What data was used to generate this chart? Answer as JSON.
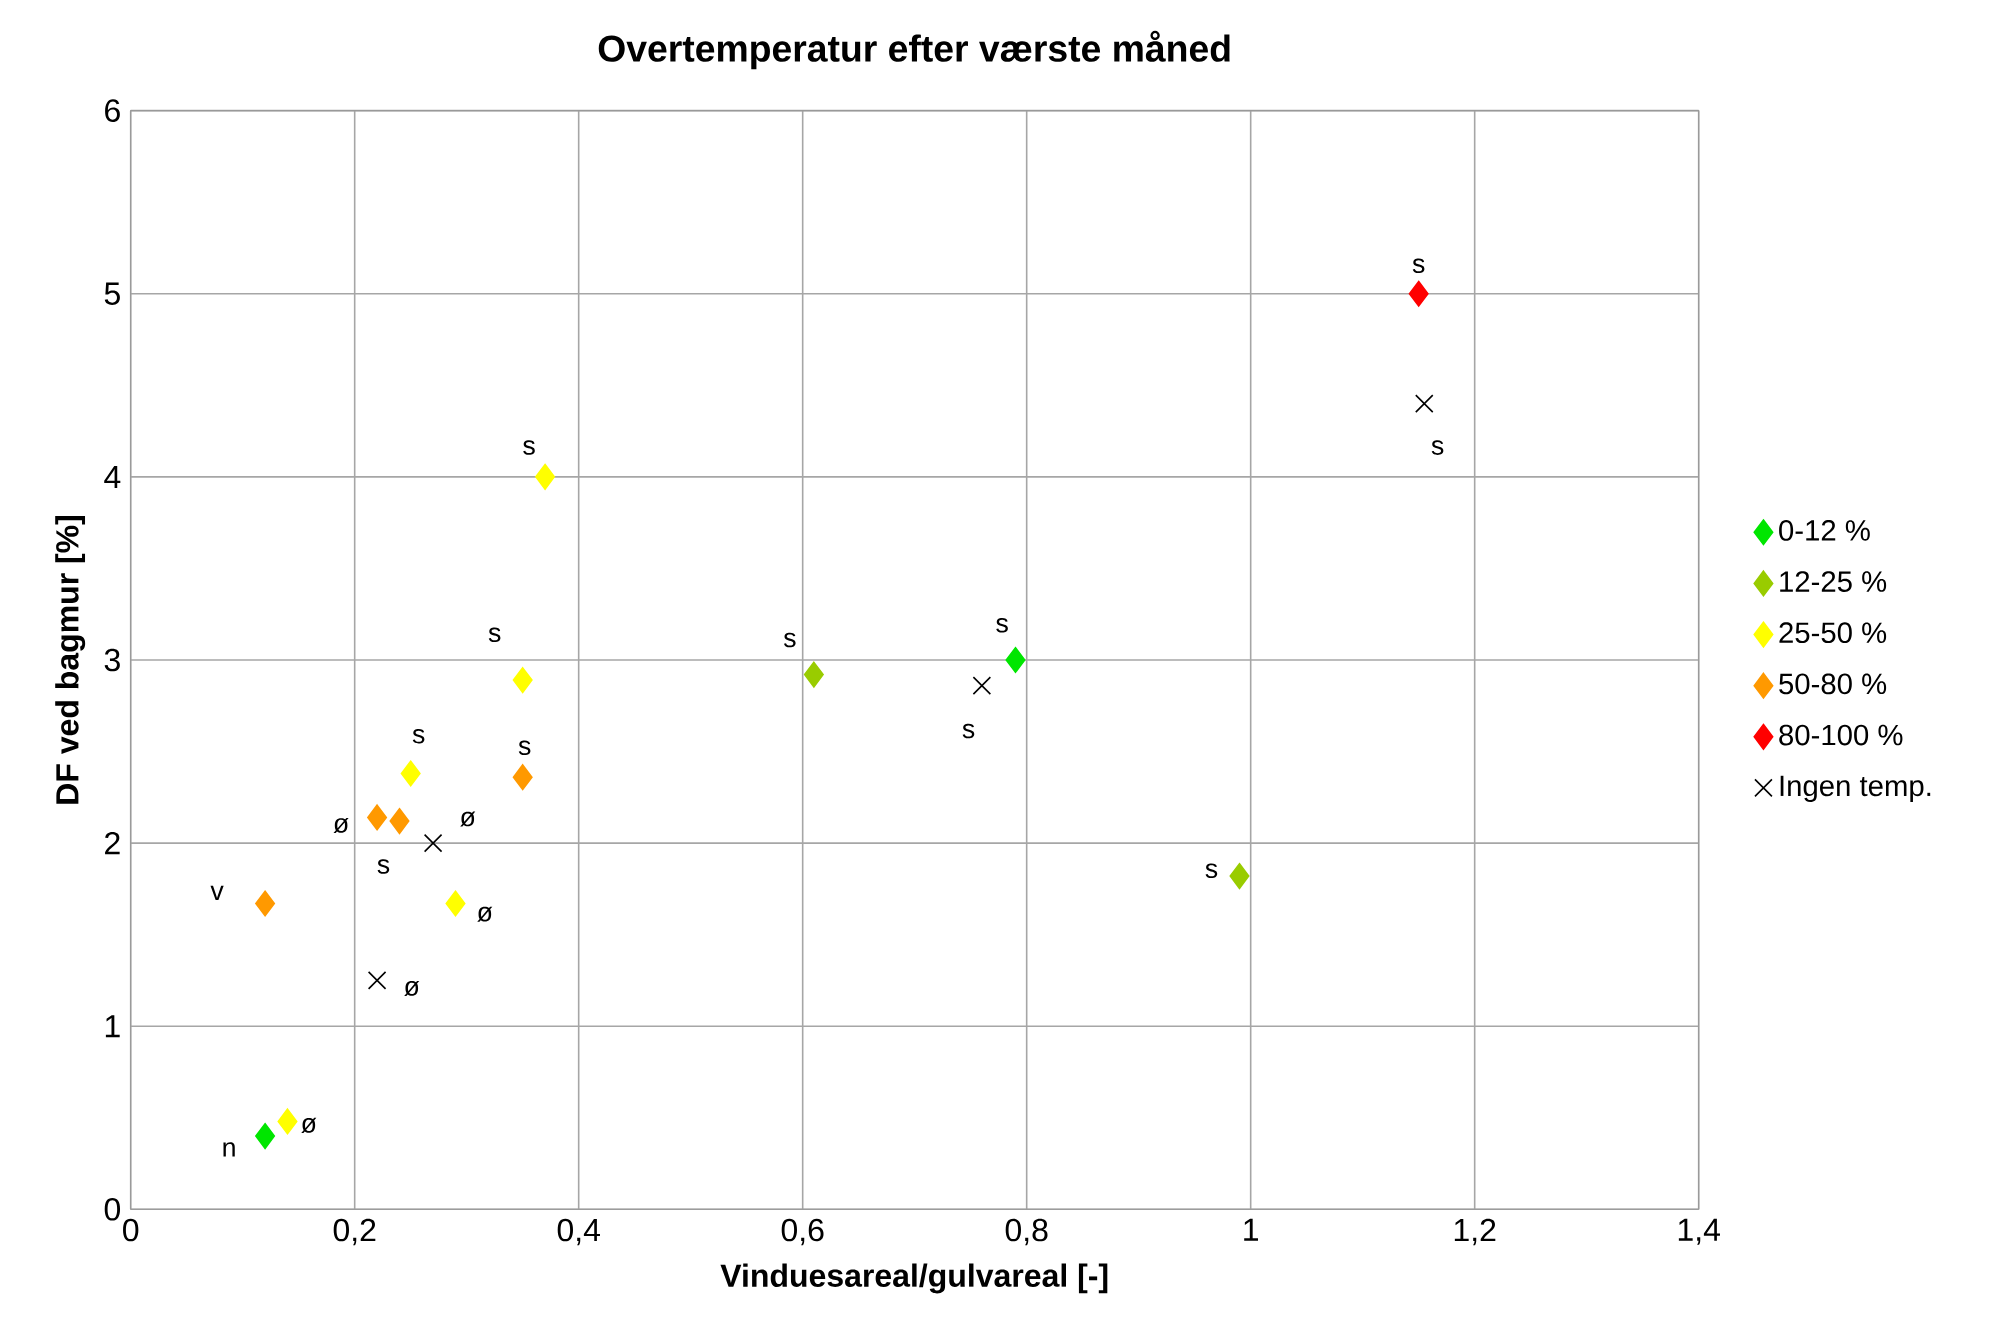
{
  "chart_data": {
    "type": "scatter",
    "title": "Overtemperatur efter værste måned",
    "xlabel": "Vinduesareal/gulvareal [-]",
    "ylabel": "DF ved bagmur [%]",
    "xlim": [
      0,
      1.4
    ],
    "ylim": [
      0,
      6
    ],
    "xticks": [
      0,
      {
        "value": 0.2,
        "label": "0,2"
      },
      {
        "value": 0.4,
        "label": "0,4"
      },
      {
        "value": 0.6,
        "label": "0,6"
      },
      {
        "value": 0.8,
        "label": "0,8"
      },
      1,
      {
        "value": 1.2,
        "label": "1,2"
      },
      {
        "value": 1.4,
        "label": "1,4"
      }
    ],
    "yticks": [
      0,
      1,
      2,
      3,
      4,
      5,
      6
    ],
    "grid": true,
    "legend": "right",
    "series": [
      {
        "name": "0-12 %",
        "color": "#00e600",
        "marker": "diamond",
        "x": [
          0.12,
          0.79
        ],
        "values": [
          0.4,
          3.0
        ]
      },
      {
        "name": "12-25 %",
        "color": "#99cc00",
        "marker": "diamond",
        "x": [
          0.61,
          0.99
        ],
        "values": [
          2.92,
          1.82
        ]
      },
      {
        "name": "25-50 %",
        "color": "#ffff00",
        "marker": "diamond",
        "x": [
          0.37,
          0.35,
          0.25,
          0.29,
          0.14
        ],
        "values": [
          4.0,
          2.89,
          2.38,
          1.67,
          0.48
        ]
      },
      {
        "name": "50-80 %",
        "color": "#ff9900",
        "marker": "diamond",
        "x": [
          0.22,
          0.24,
          0.35,
          0.12
        ],
        "values": [
          2.14,
          2.12,
          2.36,
          1.67
        ]
      },
      {
        "name": "80-100 %",
        "color": "#ff0000",
        "marker": "diamond",
        "x": [
          1.15
        ],
        "values": [
          5.0
        ]
      },
      {
        "name": "Ingen temp.",
        "color": "#000000",
        "marker": "cross",
        "x": [
          1.155,
          0.76,
          0.27,
          0.22
        ],
        "values": [
          4.4,
          2.86,
          2.0,
          1.25
        ]
      }
    ],
    "annotations": [
      {
        "text": "s",
        "x": 1.15,
        "y": 5.0
      },
      {
        "text": "s",
        "x": 1.155,
        "y": 4.4
      },
      {
        "text": "s",
        "x": 0.37,
        "y": 4.0
      },
      {
        "text": "s",
        "x": 0.35,
        "y": 2.89
      },
      {
        "text": "s",
        "x": 0.61,
        "y": 2.92
      },
      {
        "text": "s",
        "x": 0.79,
        "y": 3.0
      },
      {
        "text": "s",
        "x": 0.76,
        "y": 2.86
      },
      {
        "text": "s",
        "x": 0.99,
        "y": 1.82
      },
      {
        "text": "s",
        "x": 0.25,
        "y": 2.38
      },
      {
        "text": "s",
        "x": 0.35,
        "y": 2.36
      },
      {
        "text": "ø",
        "x": 0.22,
        "y": 2.14
      },
      {
        "text": "ø",
        "x": 0.27,
        "y": 2.0
      },
      {
        "text": "s",
        "x": 0.24,
        "y": 2.12
      },
      {
        "text": "v",
        "x": 0.12,
        "y": 1.67
      },
      {
        "text": "ø",
        "x": 0.29,
        "y": 1.67
      },
      {
        "text": "ø",
        "x": 0.22,
        "y": 1.25
      },
      {
        "text": "ø",
        "x": 0.14,
        "y": 0.48
      },
      {
        "text": "n",
        "x": 0.12,
        "y": 0.4
      }
    ]
  }
}
